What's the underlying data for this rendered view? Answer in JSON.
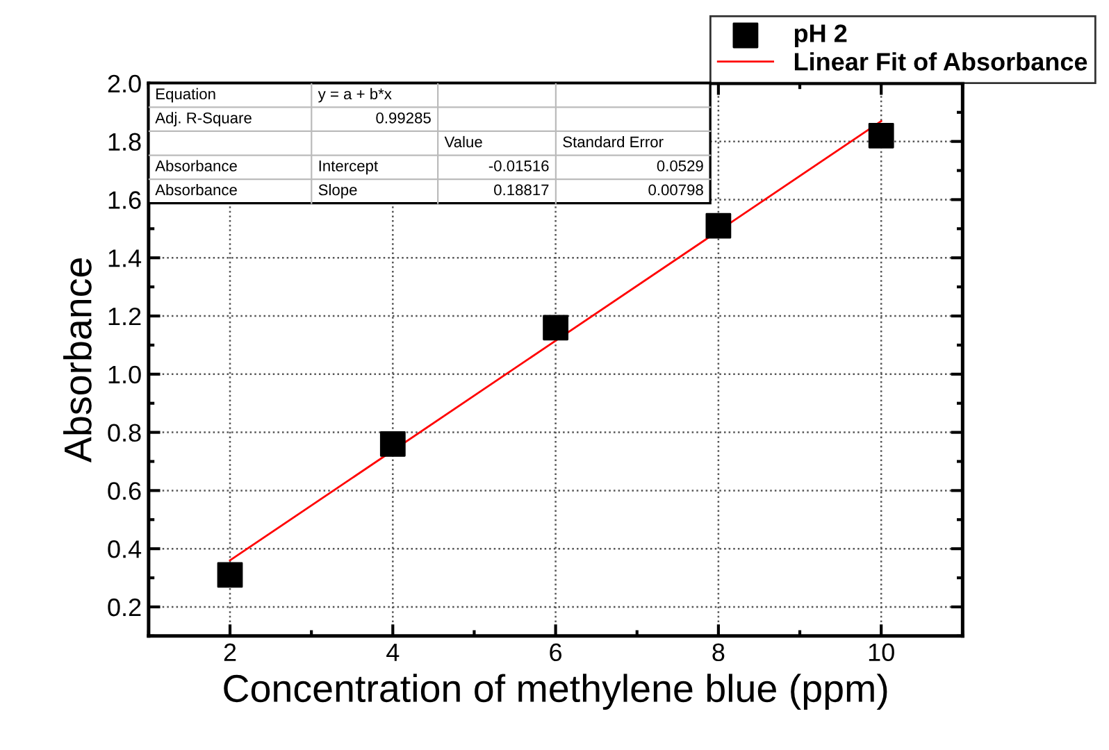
{
  "chart_data": {
    "type": "scatter",
    "xlabel": "Concentration of methylene blue (ppm)",
    "ylabel": "Absorbance",
    "x": [
      2,
      4,
      6,
      8,
      10
    ],
    "series": [
      {
        "name": "pH 2",
        "color": "#000000",
        "marker": "square",
        "values": [
          0.31,
          0.76,
          1.16,
          1.51,
          1.82
        ]
      },
      {
        "name": "Linear Fit of Absorbance",
        "type": "line",
        "color": "#ff0000",
        "marker": "none",
        "line_style": "solid",
        "x": [
          2,
          10
        ],
        "values": [
          0.36,
          1.87
        ]
      }
    ],
    "annotations": [
      "Equation",
      "y = a + b*x",
      "Adj. R-Square",
      "0.99285",
      "Value",
      "Standard Error",
      "Absorbance",
      "Intercept",
      "-0.01516",
      "0.0529",
      "Absorbance",
      "Slope",
      "0.18817",
      "0.00798"
    ],
    "xlim": [
      1,
      11
    ],
    "xticks": [
      2,
      4,
      6,
      8,
      10
    ],
    "ylim": [
      0.1,
      2.0
    ],
    "yticks": [
      0.2,
      0.4,
      0.6,
      0.8,
      {
        "value": 1,
        "label": "1.0"
      },
      1.2,
      1.4,
      1.6,
      1.8,
      {
        "value": 2,
        "label": "2.0"
      }
    ],
    "grid": true,
    "legend": "top right"
  }
}
